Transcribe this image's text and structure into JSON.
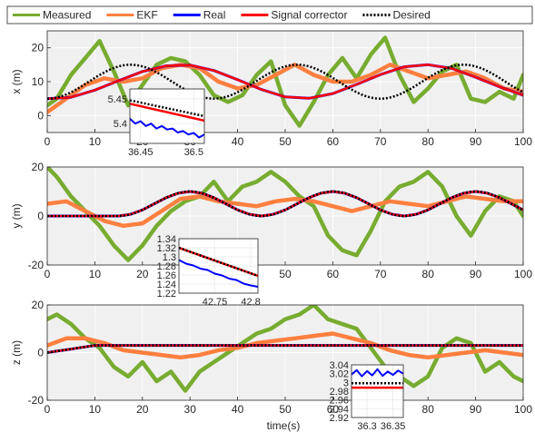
{
  "legend": {
    "position": "top",
    "entries": [
      {
        "label": "Measured",
        "color": "#77ac30",
        "style": "solid"
      },
      {
        "label": "EKF",
        "color": "#ff7f3f",
        "style": "solid"
      },
      {
        "label": "Real",
        "color": "#0000ff",
        "style": "solid"
      },
      {
        "label": "Signal corrector",
        "color": "#ff0000",
        "style": "solid"
      },
      {
        "label": "Desired",
        "color": "#000000",
        "style": "dotted"
      }
    ]
  },
  "colors": {
    "measured": "#77ac30",
    "ekf": "#ff7f3f",
    "real": "#0000ff",
    "corrector": "#ff0000",
    "desired": "#000000",
    "axes_bg": "#f0f0f0",
    "grid": "#ffffff"
  },
  "xlabel": "time(s)",
  "chart_data": [
    {
      "type": "line",
      "ylabel": "x (m)",
      "xlim": [
        0,
        100
      ],
      "ylim": [
        -5,
        25
      ],
      "xticks": [
        0,
        10,
        20,
        30,
        40,
        50,
        60,
        70,
        80,
        90,
        100
      ],
      "yticks": [
        0,
        10,
        20
      ],
      "grid": true,
      "desired": {
        "kind": "sine",
        "offset": 10,
        "amplitude": 5,
        "period": 35,
        "phase_deg": -90
      },
      "series": [
        {
          "name": "Measured",
          "x": [
            0,
            2,
            5,
            8,
            11,
            14,
            17,
            20,
            23,
            26,
            29,
            32,
            35,
            38,
            41,
            44,
            47,
            50,
            53,
            56,
            59,
            62,
            65,
            68,
            71,
            74,
            77,
            80,
            83,
            86,
            89,
            92,
            95,
            98,
            100
          ],
          "y": [
            3,
            5,
            12,
            17,
            22,
            13,
            3,
            9,
            15,
            17,
            16,
            12,
            6,
            4,
            6,
            12,
            16,
            3,
            -3,
            4,
            12,
            17,
            11,
            18,
            23,
            12,
            4,
            8,
            13,
            15,
            5,
            4,
            7,
            5,
            12
          ]
        },
        {
          "name": "EKF",
          "x": [
            0,
            4,
            8,
            12,
            16,
            20,
            24,
            28,
            32,
            36,
            40,
            44,
            48,
            52,
            56,
            60,
            64,
            68,
            72,
            76,
            80,
            84,
            88,
            92,
            96,
            100
          ],
          "y": [
            1,
            5,
            9,
            11,
            10,
            11,
            14,
            15,
            14,
            10,
            8,
            9,
            12,
            15,
            12,
            10,
            10,
            12,
            15,
            13,
            11,
            12,
            13,
            11,
            8,
            7
          ]
        },
        {
          "name": "Real",
          "x": [
            0,
            5,
            10,
            15,
            20,
            25,
            30,
            35,
            40,
            45,
            50,
            55,
            60,
            65,
            70,
            75,
            80,
            85,
            90,
            95,
            100
          ],
          "y": [
            5.0,
            5.4,
            7.5,
            10.3,
            13.0,
            14.7,
            14.9,
            13.3,
            10.6,
            7.7,
            5.5,
            5.1,
            6.5,
            9.2,
            12.1,
            14.4,
            15.0,
            13.9,
            11.3,
            8.5,
            6.0
          ]
        },
        {
          "name": "Signal corrector",
          "x": [
            0,
            5,
            10,
            15,
            20,
            25,
            30,
            35,
            40,
            45,
            50,
            55,
            60,
            65,
            70,
            75,
            80,
            85,
            90,
            95,
            100
          ],
          "y": [
            5.0,
            5.4,
            7.5,
            10.3,
            13.0,
            14.7,
            14.9,
            13.3,
            10.6,
            7.7,
            5.5,
            5.1,
            6.5,
            9.2,
            12.1,
            14.4,
            15.0,
            13.9,
            11.3,
            8.5,
            6.0
          ]
        }
      ],
      "inset": {
        "xlim": [
          36.44,
          36.51
        ],
        "ylim": [
          5.36,
          5.47
        ],
        "xticks": [
          36.45,
          36.5
        ],
        "yticks": [
          5.4,
          5.45
        ],
        "real": {
          "x": [
            36.44,
            36.445,
            36.45,
            36.455,
            36.46,
            36.465,
            36.47,
            36.475,
            36.48,
            36.485,
            36.49,
            36.495,
            36.5,
            36.505,
            36.51
          ],
          "y": [
            5.41,
            5.4,
            5.405,
            5.395,
            5.4,
            5.39,
            5.395,
            5.388,
            5.39,
            5.382,
            5.385,
            5.378,
            5.381,
            5.372,
            5.378
          ]
        },
        "corrector": {
          "x": [
            36.44,
            36.51
          ],
          "y": [
            5.44,
            5.406
          ]
        },
        "desired": {
          "x": [
            36.44,
            36.51
          ],
          "y": [
            5.447,
            5.415
          ]
        }
      }
    },
    {
      "type": "line",
      "ylabel": "y (m)",
      "xlim": [
        0,
        100
      ],
      "ylim": [
        -20,
        20
      ],
      "xticks": [
        0,
        10,
        20,
        30,
        40,
        50,
        60,
        70,
        80,
        90,
        100
      ],
      "yticks": [
        -20,
        0,
        20
      ],
      "grid": true,
      "desired": {
        "kind": "sine_ramp",
        "amplitude": 10,
        "period": 30,
        "phase_deg": -90,
        "start": 15
      },
      "series": [
        {
          "name": "Measured",
          "x": [
            0,
            2,
            5,
            8,
            11,
            14,
            17,
            20,
            23,
            26,
            29,
            32,
            35,
            38,
            41,
            44,
            47,
            50,
            53,
            56,
            59,
            62,
            65,
            68,
            71,
            74,
            77,
            80,
            83,
            86,
            89,
            92,
            95,
            98,
            100
          ],
          "y": [
            20,
            16,
            8,
            2,
            -4,
            -12,
            -18,
            -12,
            -4,
            2,
            6,
            8,
            14,
            6,
            12,
            14,
            18,
            14,
            8,
            4,
            -8,
            -14,
            -16,
            -6,
            6,
            12,
            14,
            18,
            12,
            0,
            -8,
            2,
            8,
            6,
            0
          ]
        },
        {
          "name": "EKF",
          "x": [
            0,
            4,
            8,
            12,
            16,
            20,
            24,
            28,
            32,
            36,
            40,
            44,
            48,
            52,
            56,
            60,
            64,
            68,
            72,
            76,
            80,
            84,
            88,
            92,
            96,
            100
          ],
          "y": [
            5,
            6,
            2,
            -2,
            -4,
            -3,
            2,
            7,
            8,
            6,
            5,
            4,
            6,
            7,
            6,
            4,
            2,
            4,
            6,
            5,
            4,
            6,
            8,
            7,
            6,
            6
          ]
        },
        {
          "name": "Real",
          "x": [
            0,
            15,
            17.5,
            20,
            22.5,
            25,
            27.5,
            30,
            32.5,
            35,
            37.5,
            40,
            42.5,
            45,
            47.5,
            50,
            52.5,
            55,
            57.5,
            60,
            62.5,
            65,
            67.5,
            70,
            72.5,
            75,
            77.5,
            80,
            82.5,
            85,
            87.5,
            90,
            92.5,
            95,
            97.5,
            100
          ],
          "y": [
            0,
            0,
            0.7,
            2.5,
            5.0,
            7.5,
            9.3,
            10.0,
            9.3,
            7.5,
            5.0,
            2.5,
            0.7,
            0,
            0.7,
            2.5,
            5.0,
            7.5,
            9.3,
            10.0,
            9.3,
            7.5,
            5.0,
            2.5,
            0.7,
            0,
            0.7,
            2.5,
            5.0,
            7.5,
            9.3,
            10.0,
            9.3,
            7.5,
            5.0,
            2.5
          ]
        },
        {
          "name": "Signal corrector",
          "x": [
            0,
            15,
            17.5,
            20,
            22.5,
            25,
            27.5,
            30,
            32.5,
            35,
            37.5,
            40,
            42.5,
            45,
            47.5,
            50,
            52.5,
            55,
            57.5,
            60,
            62.5,
            65,
            67.5,
            70,
            72.5,
            75,
            77.5,
            80,
            82.5,
            85,
            87.5,
            90,
            92.5,
            95,
            97.5,
            100
          ],
          "y": [
            0,
            0,
            0.7,
            2.5,
            5.0,
            7.5,
            9.3,
            10.0,
            9.3,
            7.5,
            5.0,
            2.5,
            0.7,
            0,
            0.7,
            2.5,
            5.0,
            7.5,
            9.3,
            10.0,
            9.3,
            7.5,
            5.0,
            2.5,
            0.7,
            0,
            0.7,
            2.5,
            5.0,
            7.5,
            9.3,
            10.0,
            9.3,
            7.5,
            5.0,
            2.5
          ]
        }
      ],
      "inset": {
        "xlim": [
          42.7,
          42.81
        ],
        "ylim": [
          1.22,
          1.34
        ],
        "xticks": [
          42.75,
          42.8
        ],
        "yticks": [
          1.22,
          1.24,
          1.26,
          1.28,
          1.3,
          1.32,
          1.34
        ],
        "real": {
          "x": [
            42.7,
            42.71,
            42.72,
            42.73,
            42.74,
            42.75,
            42.76,
            42.77,
            42.78,
            42.79,
            42.8,
            42.81
          ],
          "y": [
            1.293,
            1.285,
            1.281,
            1.274,
            1.271,
            1.263,
            1.259,
            1.252,
            1.249,
            1.241,
            1.237,
            1.234
          ]
        },
        "corrector": {
          "x": [
            42.7,
            42.81
          ],
          "y": [
            1.32,
            1.258
          ]
        },
        "desired": {
          "x": [
            42.7,
            42.81
          ],
          "y": [
            1.32,
            1.258
          ]
        }
      }
    },
    {
      "type": "line",
      "ylabel": "z (m)",
      "xlim": [
        0,
        100
      ],
      "ylim": [
        -20,
        20
      ],
      "xticks": [
        0,
        10,
        20,
        30,
        40,
        50,
        60,
        70,
        80,
        90,
        100
      ],
      "yticks": [
        -20,
        0,
        20
      ],
      "grid": true,
      "desired": {
        "kind": "ramp_hold",
        "hold": 3,
        "ramp_end": 10
      },
      "series": [
        {
          "name": "Measured",
          "x": [
            0,
            2,
            5,
            8,
            11,
            14,
            17,
            20,
            23,
            26,
            29,
            32,
            35,
            38,
            41,
            44,
            47,
            50,
            53,
            56,
            59,
            62,
            65,
            68,
            71,
            74,
            77,
            80,
            83,
            86,
            89,
            92,
            95,
            98,
            100
          ],
          "y": [
            14,
            16,
            12,
            6,
            2,
            -6,
            -10,
            -4,
            -12,
            -8,
            -16,
            -8,
            -4,
            0,
            4,
            8,
            10,
            14,
            16,
            20,
            14,
            12,
            10,
            2,
            -6,
            -10,
            -14,
            -10,
            2,
            6,
            4,
            -8,
            -4,
            -10,
            -12
          ]
        },
        {
          "name": "EKF",
          "x": [
            0,
            4,
            8,
            12,
            16,
            20,
            24,
            28,
            32,
            36,
            40,
            44,
            48,
            52,
            56,
            60,
            64,
            68,
            72,
            76,
            80,
            84,
            88,
            92,
            96,
            100
          ],
          "y": [
            3,
            6,
            6,
            4,
            1,
            0,
            -1,
            -2,
            -1,
            1,
            2,
            4,
            5,
            6,
            7,
            8,
            6,
            4,
            1,
            -1,
            -2,
            -1,
            0,
            1,
            0,
            -1
          ]
        },
        {
          "name": "Real",
          "x": [
            0,
            2,
            4,
            6,
            8,
            10,
            100
          ],
          "y": [
            0,
            0.6,
            1.2,
            1.8,
            2.4,
            3,
            3
          ]
        },
        {
          "name": "Signal corrector",
          "x": [
            0,
            2,
            4,
            6,
            8,
            10,
            100
          ],
          "y": [
            0,
            0.6,
            1.2,
            1.8,
            2.4,
            3,
            3
          ]
        }
      ],
      "inset": {
        "xlim": [
          36.27,
          36.37
        ],
        "ylim": [
          2.92,
          3.04
        ],
        "xticks": [
          36.3,
          36.35
        ],
        "yticks": [
          2.92,
          2.94,
          2.96,
          2.98,
          3,
          3.02,
          3.04
        ],
        "real": {
          "x": [
            36.27,
            36.28,
            36.29,
            36.3,
            36.31,
            36.32,
            36.33,
            36.34,
            36.35,
            36.36,
            36.37
          ],
          "y": [
            3.018,
            3.028,
            3.014,
            3.026,
            3.016,
            3.03,
            3.015,
            3.025,
            3.017,
            3.027,
            3.02
          ]
        },
        "corrector": {
          "x": [
            36.27,
            36.37
          ],
          "y": [
            2.988,
            2.988
          ]
        },
        "desired": {
          "x": [
            36.27,
            36.37
          ],
          "y": [
            2.998,
            2.998
          ]
        }
      }
    }
  ]
}
